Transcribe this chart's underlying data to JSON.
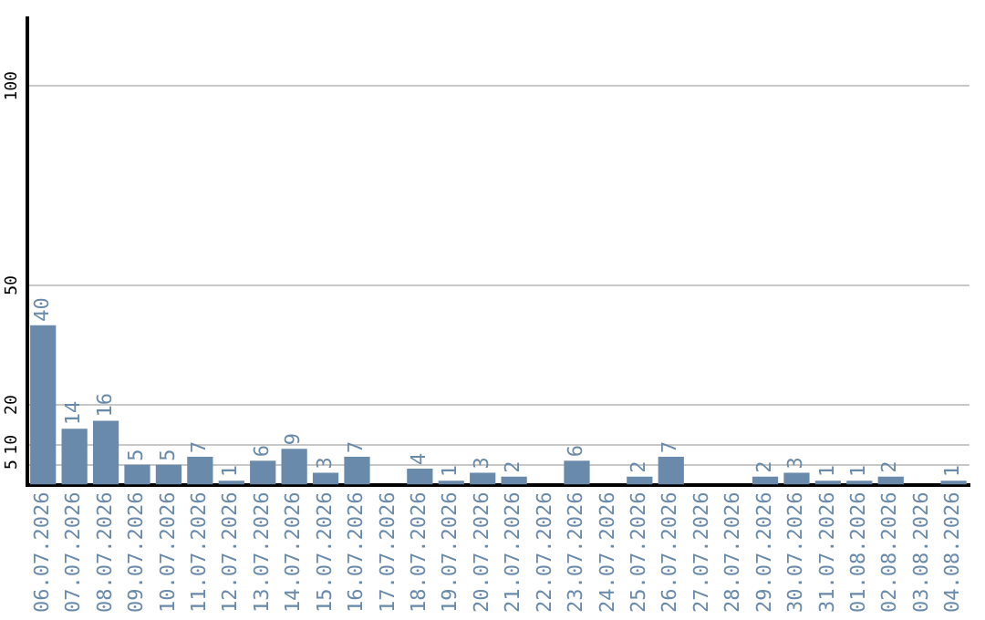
{
  "chart_data": {
    "type": "bar",
    "categories": [
      "06.07.2026",
      "07.07.2026",
      "08.07.2026",
      "09.07.2026",
      "10.07.2026",
      "11.07.2026",
      "12.07.2026",
      "13.07.2026",
      "14.07.2026",
      "15.07.2026",
      "16.07.2026",
      "17.07.2026",
      "18.07.2026",
      "19.07.2026",
      "20.07.2026",
      "21.07.2026",
      "22.07.2026",
      "23.07.2026",
      "24.07.2026",
      "25.07.2026",
      "26.07.2026",
      "27.07.2026",
      "28.07.2026",
      "29.07.2026",
      "30.07.2026",
      "31.07.2026",
      "01.08.2026",
      "02.08.2026",
      "03.08.2026",
      "04.08.2026"
    ],
    "values": [
      40,
      14,
      16,
      5,
      5,
      7,
      1,
      6,
      9,
      3,
      7,
      null,
      4,
      1,
      3,
      2,
      null,
      6,
      null,
      2,
      7,
      null,
      null,
      2,
      3,
      1,
      1,
      2,
      null,
      1
    ],
    "color": "#6a8aab",
    "ylim": [
      0,
      117
    ],
    "yticks": [
      5,
      10,
      20,
      50,
      100
    ],
    "grid": "y",
    "data_labels": true,
    "legend": false
  }
}
